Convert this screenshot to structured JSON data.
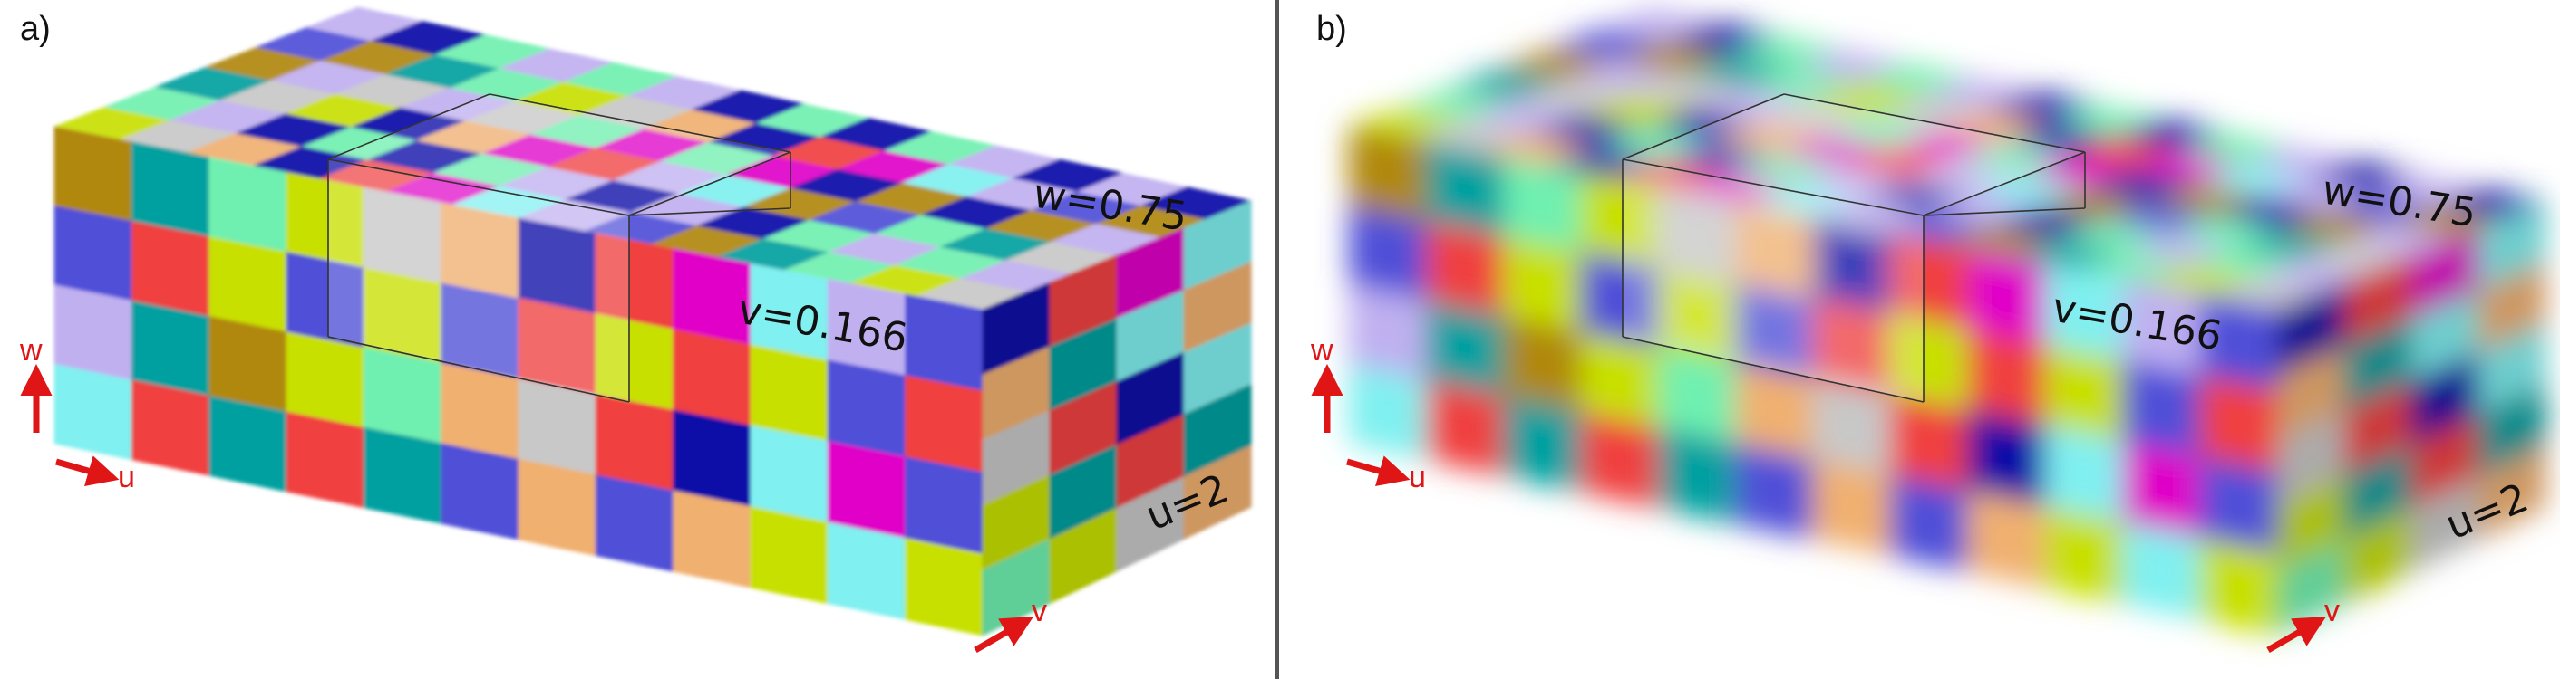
{
  "panels": [
    {
      "id": "a",
      "label": "a)",
      "style": "sharp",
      "face_labels": {
        "w": "w=0.75",
        "v": "v=0.166",
        "u": "u=2"
      },
      "axes": {
        "w": "w",
        "u": "u",
        "v": "v"
      }
    },
    {
      "id": "b",
      "label": "b)",
      "style": "blurred",
      "face_labels": {
        "w": "w=0.75",
        "v": "v=0.166",
        "u": "u=2"
      },
      "axes": {
        "w": "w",
        "u": "u",
        "v": "v"
      }
    }
  ],
  "colors": {
    "palette": [
      "#0a0aa8",
      "#00a0a0",
      "#e000c8",
      "#c8e000",
      "#c0b0f0",
      "#f0b070",
      "#b08810",
      "#f04040",
      "#70f0b0",
      "#80f0f0",
      "#c8c8c8",
      "#5050d8"
    ],
    "arrow": "#e01515",
    "divider": "#555555"
  }
}
